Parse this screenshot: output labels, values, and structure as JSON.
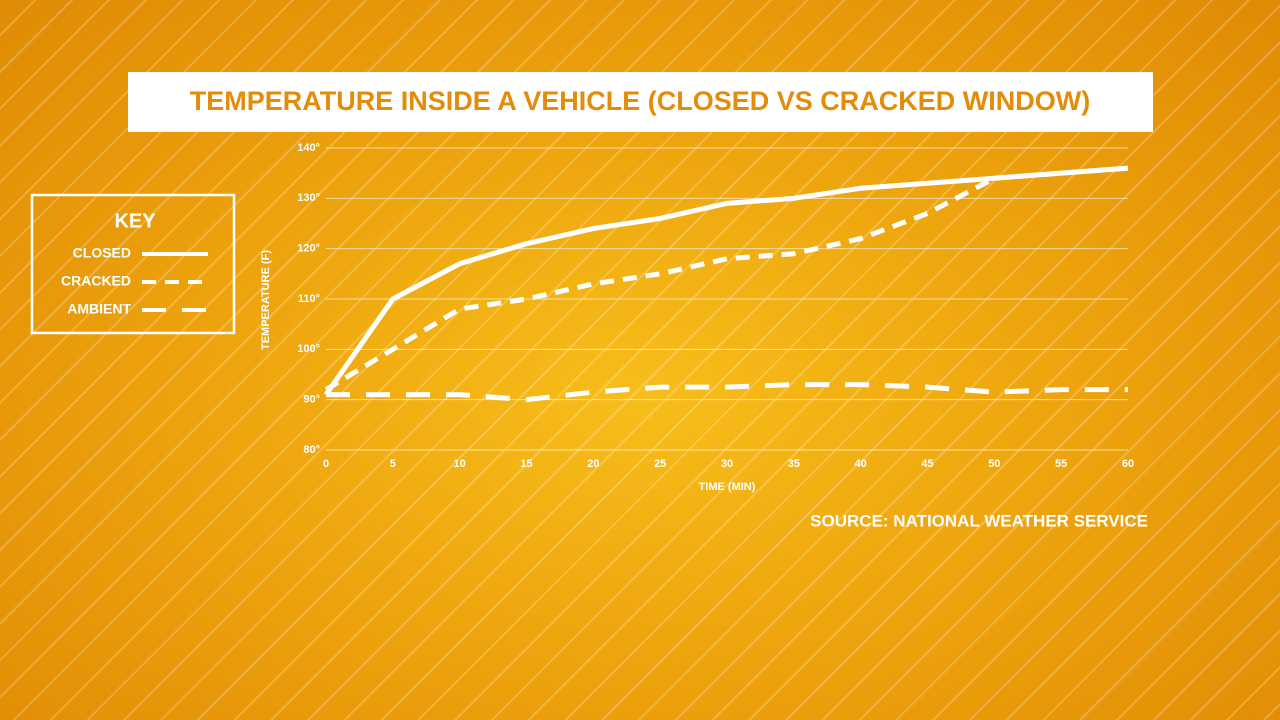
{
  "chart_data": {
    "type": "line",
    "title": "TEMPERATURE INSIDE A VEHICLE (CLOSED VS CRACKED WINDOW)",
    "x_label": "TIME (MIN)",
    "y_label": "TEMPERATURE (F)",
    "legend_title": "KEY",
    "source": "SOURCE: NATIONAL WEATHER SERVICE",
    "x": [
      0,
      5,
      10,
      15,
      20,
      25,
      30,
      35,
      40,
      45,
      50,
      55,
      60
    ],
    "series": [
      {
        "name": "CLOSED",
        "color": "#ffffff",
        "style": "solid",
        "values": [
          91,
          110,
          117,
          121,
          124,
          126,
          129,
          130,
          132,
          133,
          134,
          135,
          136
        ]
      },
      {
        "name": "CRACKED",
        "color": "#ffffff",
        "style": "dashed",
        "values": [
          92,
          100,
          108,
          110,
          113,
          115,
          118,
          119,
          122,
          127,
          134,
          135,
          136
        ]
      },
      {
        "name": "AMBIENT",
        "color": "#ffffff",
        "style": "long-dashed",
        "values": [
          91,
          91,
          91,
          90,
          91.5,
          92.5,
          92.5,
          93,
          93,
          92.5,
          91.5,
          92,
          92
        ]
      }
    ],
    "xlim": [
      0,
      60
    ],
    "xticks": [
      0,
      5,
      10,
      15,
      20,
      25,
      30,
      35,
      40,
      45,
      50,
      55,
      60
    ],
    "ylim": [
      80,
      140
    ],
    "yticks": [
      {
        "value": 80,
        "label": "80°"
      },
      {
        "value": 90,
        "label": "90°"
      },
      {
        "value": 100,
        "label": "100°"
      },
      {
        "value": 110,
        "label": "110°"
      },
      {
        "value": 120,
        "label": "120°"
      },
      {
        "value": 130,
        "label": "130°"
      },
      {
        "value": 140,
        "label": "140°"
      }
    ],
    "grid": true,
    "legend_position": "left"
  }
}
